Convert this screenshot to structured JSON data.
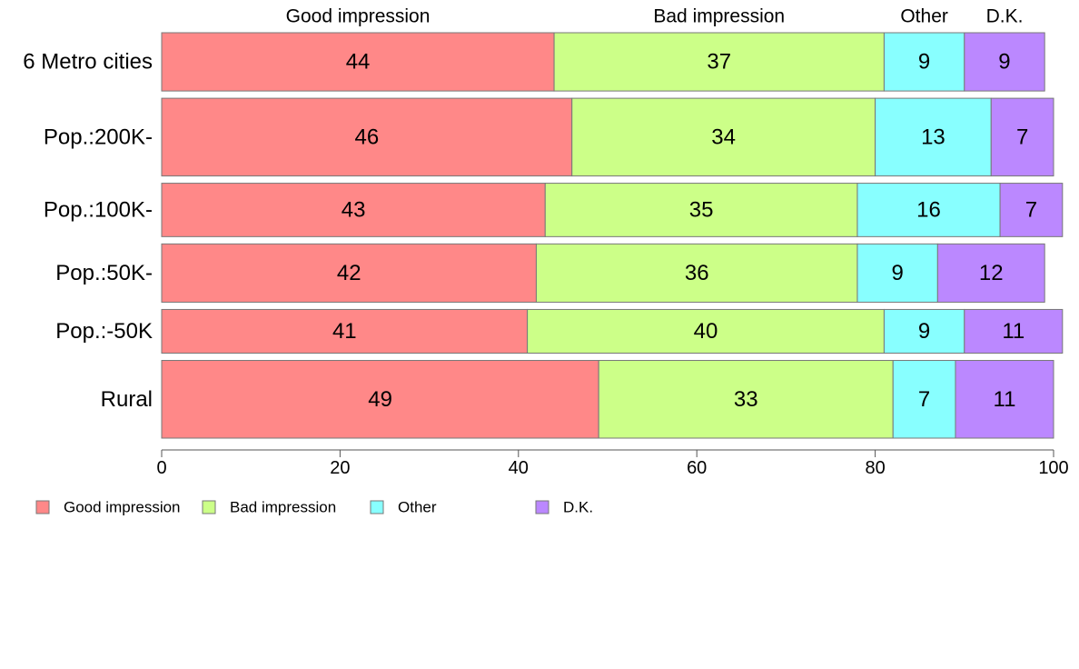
{
  "chart_data": {
    "type": "bar",
    "orientation": "horizontal",
    "stacked": true,
    "categories": [
      "6 Metro cities",
      "Pop.:200K-",
      "Pop.:100K-",
      "Pop.:50K-",
      "Pop.:-50K",
      "Rural"
    ],
    "category_weights": [
      0.6,
      0.8,
      0.55,
      0.6,
      0.45,
      0.8
    ],
    "series": [
      {
        "name": "Good impression",
        "color": "#ff8888",
        "values": [
          44,
          46,
          43,
          42,
          41,
          49
        ]
      },
      {
        "name": "Bad impression",
        "color": "#ccff88",
        "values": [
          37,
          34,
          35,
          36,
          40,
          33
        ]
      },
      {
        "name": "Other",
        "color": "#88ffff",
        "values": [
          9,
          13,
          16,
          9,
          9,
          7
        ]
      },
      {
        "name": "D.K.",
        "color": "#bb88ff",
        "values": [
          9,
          7,
          7,
          12,
          11,
          11
        ]
      }
    ],
    "column_headers": [
      "Good impression",
      "Bad impression",
      "Other",
      "D.K."
    ],
    "xlim": [
      0,
      100
    ],
    "xticks": [
      0,
      20,
      40,
      60,
      80,
      100
    ],
    "legend_position": "bottom-left",
    "grid": false
  }
}
